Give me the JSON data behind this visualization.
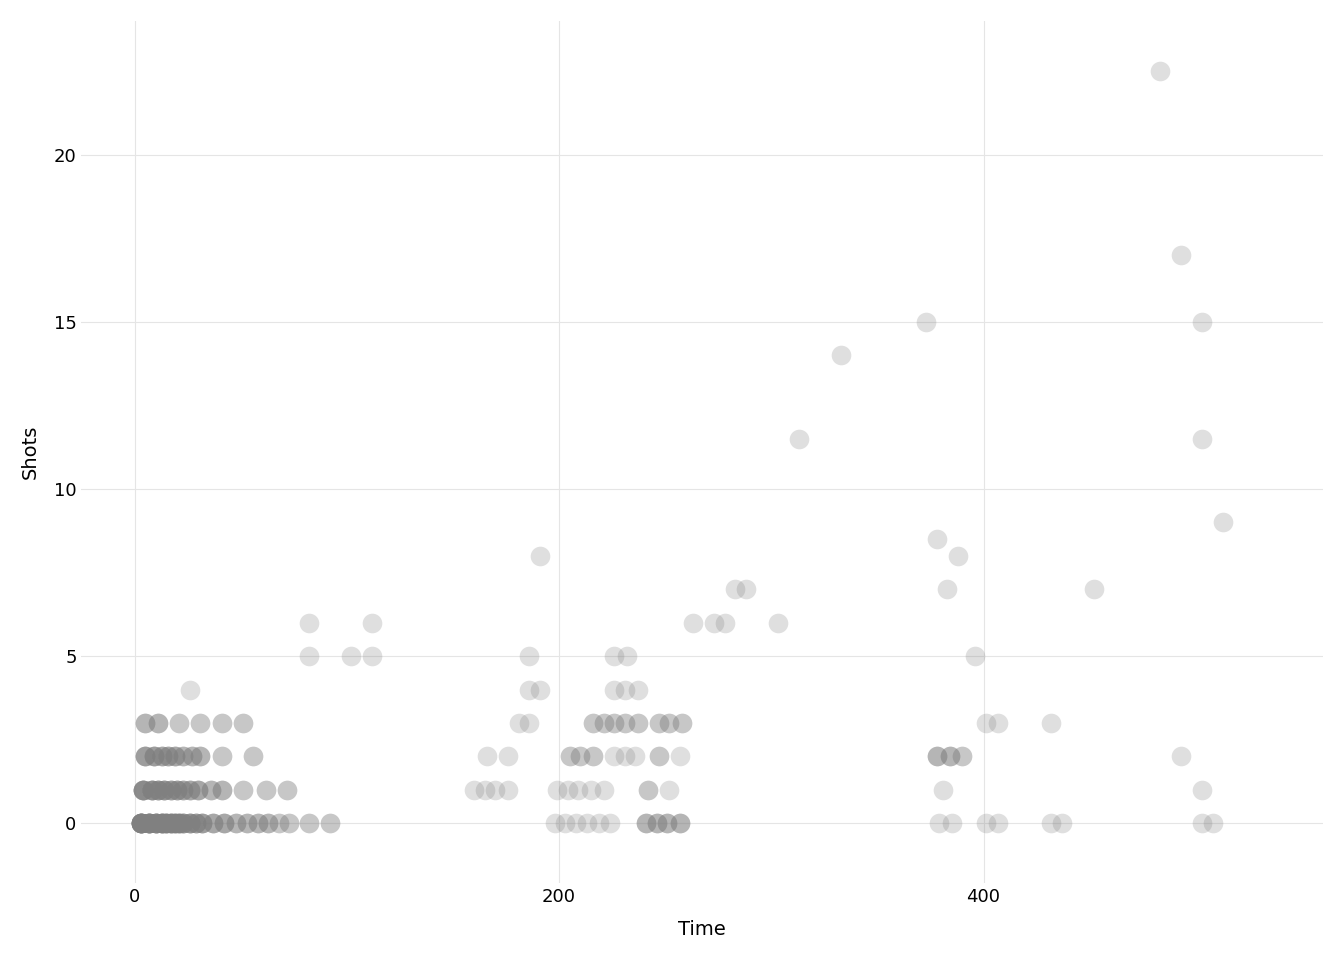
{
  "title": "",
  "xlabel": "Time",
  "ylabel": "Shots",
  "background_color": "#ffffff",
  "grid_color": "#e5e5e5",
  "xlim": [
    -25,
    560
  ],
  "ylim": [
    -1.8,
    24
  ],
  "xticks": [
    0,
    200,
    400
  ],
  "yticks": [
    0,
    5,
    10,
    15,
    20
  ],
  "points": [
    [
      3,
      0
    ],
    [
      7,
      0
    ],
    [
      10,
      0
    ],
    [
      13,
      0
    ],
    [
      15,
      0
    ],
    [
      17,
      0
    ],
    [
      19,
      0
    ],
    [
      21,
      0
    ],
    [
      23,
      0
    ],
    [
      26,
      0
    ],
    [
      29,
      0
    ],
    [
      32,
      0
    ],
    [
      37,
      0
    ],
    [
      42,
      0
    ],
    [
      48,
      0
    ],
    [
      53,
      0
    ],
    [
      58,
      0
    ],
    [
      63,
      0
    ],
    [
      68,
      0
    ],
    [
      73,
      0
    ],
    [
      82,
      0
    ],
    [
      92,
      0
    ],
    [
      4,
      1
    ],
    [
      8,
      1
    ],
    [
      11,
      1
    ],
    [
      14,
      1
    ],
    [
      17,
      1
    ],
    [
      20,
      1
    ],
    [
      23,
      1
    ],
    [
      26,
      1
    ],
    [
      30,
      1
    ],
    [
      36,
      1
    ],
    [
      41,
      1
    ],
    [
      51,
      1
    ],
    [
      62,
      1
    ],
    [
      72,
      1
    ],
    [
      5,
      2
    ],
    [
      9,
      2
    ],
    [
      13,
      2
    ],
    [
      16,
      2
    ],
    [
      19,
      2
    ],
    [
      23,
      2
    ],
    [
      27,
      2
    ],
    [
      31,
      2
    ],
    [
      41,
      2
    ],
    [
      56,
      2
    ],
    [
      5,
      3
    ],
    [
      11,
      3
    ],
    [
      21,
      3
    ],
    [
      31,
      3
    ],
    [
      41,
      3
    ],
    [
      51,
      3
    ],
    [
      26,
      4
    ],
    [
      82,
      5
    ],
    [
      102,
      5
    ],
    [
      112,
      5
    ],
    [
      82,
      6
    ],
    [
      112,
      6
    ],
    [
      160,
      1
    ],
    [
      165,
      1
    ],
    [
      170,
      1
    ],
    [
      176,
      1
    ],
    [
      166,
      2
    ],
    [
      176,
      2
    ],
    [
      181,
      3
    ],
    [
      186,
      3
    ],
    [
      186,
      4
    ],
    [
      191,
      4
    ],
    [
      186,
      5
    ],
    [
      191,
      8
    ],
    [
      198,
      0
    ],
    [
      203,
      0
    ],
    [
      208,
      0
    ],
    [
      213,
      0
    ],
    [
      219,
      0
    ],
    [
      224,
      0
    ],
    [
      199,
      1
    ],
    [
      204,
      1
    ],
    [
      209,
      1
    ],
    [
      215,
      1
    ],
    [
      221,
      1
    ],
    [
      205,
      2
    ],
    [
      210,
      2
    ],
    [
      216,
      2
    ],
    [
      226,
      2
    ],
    [
      231,
      2
    ],
    [
      236,
      2
    ],
    [
      216,
      3
    ],
    [
      221,
      3
    ],
    [
      226,
      3
    ],
    [
      231,
      3
    ],
    [
      237,
      3
    ],
    [
      226,
      4
    ],
    [
      231,
      4
    ],
    [
      237,
      4
    ],
    [
      226,
      5
    ],
    [
      232,
      5
    ],
    [
      241,
      0
    ],
    [
      246,
      0
    ],
    [
      251,
      0
    ],
    [
      257,
      0
    ],
    [
      242,
      1
    ],
    [
      252,
      1
    ],
    [
      247,
      2
    ],
    [
      257,
      2
    ],
    [
      247,
      3
    ],
    [
      252,
      3
    ],
    [
      258,
      3
    ],
    [
      263,
      6
    ],
    [
      273,
      6
    ],
    [
      278,
      6
    ],
    [
      283,
      7
    ],
    [
      288,
      7
    ],
    [
      303,
      6
    ],
    [
      313,
      11.5
    ],
    [
      333,
      14
    ],
    [
      373,
      15
    ],
    [
      378,
      8.5
    ],
    [
      383,
      7
    ],
    [
      388,
      8
    ],
    [
      378,
      2
    ],
    [
      384,
      2
    ],
    [
      390,
      2
    ],
    [
      379,
      0
    ],
    [
      385,
      0
    ],
    [
      381,
      1
    ],
    [
      396,
      5
    ],
    [
      401,
      3
    ],
    [
      407,
      3
    ],
    [
      401,
      0
    ],
    [
      407,
      0
    ],
    [
      432,
      0
    ],
    [
      437,
      0
    ],
    [
      432,
      3
    ],
    [
      452,
      7
    ],
    [
      483,
      22.5
    ],
    [
      493,
      17
    ],
    [
      503,
      15
    ],
    [
      503,
      11.5
    ],
    [
      513,
      9
    ],
    [
      493,
      2
    ],
    [
      503,
      1
    ],
    [
      503,
      0
    ],
    [
      508,
      0
    ]
  ],
  "counts": [
    15,
    12,
    10,
    10,
    8,
    8,
    7,
    7,
    6,
    6,
    5,
    5,
    4,
    4,
    3,
    3,
    3,
    3,
    2,
    2,
    2,
    2,
    8,
    7,
    6,
    6,
    5,
    5,
    4,
    4,
    4,
    3,
    3,
    2,
    2,
    2,
    5,
    5,
    4,
    4,
    4,
    3,
    3,
    3,
    2,
    2,
    3,
    3,
    2,
    2,
    2,
    2,
    1,
    1,
    1,
    1,
    1,
    1,
    1,
    1,
    1,
    1,
    1,
    1,
    1,
    1,
    1,
    1,
    1,
    1,
    1,
    1,
    1,
    1,
    1,
    1,
    1,
    1,
    1,
    1,
    1,
    2,
    2,
    2,
    1,
    1,
    1,
    2,
    2,
    2,
    2,
    2,
    1,
    1,
    1,
    1,
    1,
    3,
    3,
    3,
    3,
    2,
    1,
    2,
    1,
    2,
    2,
    2,
    1,
    1,
    1,
    1,
    1,
    1,
    1,
    1,
    1,
    1,
    1,
    1,
    3,
    3,
    2,
    1,
    1,
    1,
    1,
    1,
    1,
    1,
    1,
    1,
    1,
    1,
    1,
    1,
    1,
    1,
    1,
    1,
    1,
    1,
    1,
    1,
    1,
    1,
    1,
    1
  ],
  "marker_size": 200,
  "single_alpha": 0.25,
  "gray_val": 0.5
}
